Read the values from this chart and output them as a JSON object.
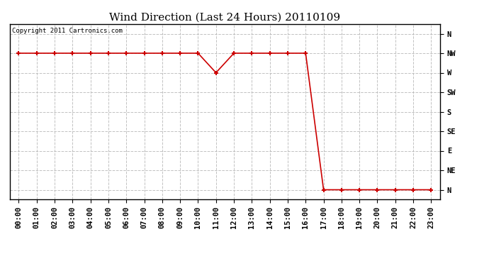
{
  "title": "Wind Direction (Last 24 Hours) 20110109",
  "copyright_text": "Copyright 2011 Cartronics.com",
  "background_color": "#ffffff",
  "plot_bg_color": "#ffffff",
  "line_color": "#cc0000",
  "grid_color": "#bbbbbb",
  "x_hours": [
    0,
    1,
    2,
    3,
    4,
    5,
    6,
    7,
    8,
    9,
    10,
    11,
    12,
    13,
    14,
    15,
    16,
    17,
    18,
    19,
    20,
    21,
    22,
    23
  ],
  "y_data": [
    7,
    7,
    7,
    7,
    7,
    7,
    7,
    7,
    7,
    7,
    7,
    6,
    7,
    7,
    7,
    7,
    7,
    0,
    0,
    0,
    0,
    0,
    0,
    0
  ],
  "y_tick_labels": [
    "N",
    "NE",
    "E",
    "SE",
    "S",
    "SW",
    "W",
    "NW",
    "N"
  ],
  "title_fontsize": 11,
  "tick_fontsize": 7.5
}
